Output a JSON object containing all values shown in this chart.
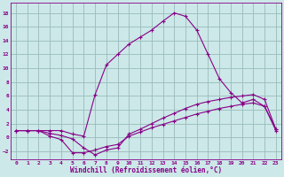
{
  "xlabel": "Windchill (Refroidissement éolien,°C)",
  "bg_color": "#cce8e8",
  "line_color": "#880088",
  "grid_color": "#99bbbb",
  "xlim": [
    -0.5,
    23.5
  ],
  "ylim": [
    -3.2,
    19.5
  ],
  "xticks": [
    0,
    1,
    2,
    3,
    4,
    5,
    6,
    7,
    8,
    9,
    10,
    11,
    12,
    13,
    14,
    15,
    16,
    17,
    18,
    19,
    20,
    21,
    22,
    23
  ],
  "yticks": [
    -2,
    0,
    2,
    4,
    6,
    8,
    10,
    12,
    14,
    16,
    18
  ],
  "curve_big_x": [
    0,
    1,
    2,
    3,
    4,
    5,
    6,
    7,
    8,
    9,
    10,
    11,
    12,
    13,
    14,
    15,
    16,
    17,
    18,
    19,
    20,
    21,
    22,
    23
  ],
  "curve_big_y": [
    1.0,
    1.0,
    1.0,
    1.0,
    1.0,
    0.5,
    0.2,
    6.2,
    10.5,
    12.0,
    13.5,
    14.5,
    15.5,
    16.8,
    18.0,
    17.5,
    15.5,
    12.0,
    8.5,
    6.5,
    5.0,
    5.5,
    4.5,
    1.2
  ],
  "curve_mid_x": [
    0,
    1,
    2,
    3,
    4,
    5,
    6,
    7,
    8,
    9,
    10,
    11,
    12,
    13,
    14,
    15,
    16,
    17,
    18,
    19,
    20,
    21,
    22,
    23
  ],
  "curve_mid_y": [
    1.0,
    1.0,
    1.0,
    0.6,
    0.3,
    -0.2,
    -1.5,
    -2.5,
    -1.8,
    -1.5,
    0.5,
    1.2,
    2.0,
    2.8,
    3.5,
    4.2,
    4.8,
    5.2,
    5.5,
    5.8,
    6.0,
    6.2,
    5.5,
    1.2
  ],
  "curve_low_x": [
    0,
    1,
    2,
    3,
    4,
    5,
    6,
    7,
    8,
    9,
    10,
    11,
    12,
    13,
    14,
    15,
    16,
    17,
    18,
    19,
    20,
    21,
    22,
    23
  ],
  "curve_low_y": [
    1.0,
    1.0,
    1.0,
    0.2,
    -0.3,
    -2.2,
    -2.2,
    -1.8,
    -1.3,
    -1.0,
    0.2,
    0.8,
    1.4,
    1.9,
    2.4,
    2.9,
    3.4,
    3.8,
    4.2,
    4.5,
    4.8,
    5.0,
    4.5,
    1.0
  ]
}
